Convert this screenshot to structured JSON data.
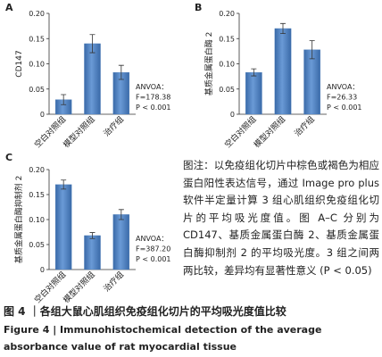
{
  "chart_data": [
    {
      "type": "bar",
      "panel": "A",
      "ylabel": "CD147",
      "categories": [
        "空白对照组",
        "模型对照组",
        "治疗组"
      ],
      "values": [
        0.029,
        0.14,
        0.083
      ],
      "errors": [
        0.01,
        0.018,
        0.014
      ],
      "color": "#4a7ebb",
      "ylim": [
        0,
        0.2
      ],
      "yticks": [
        0,
        0.05,
        {
          "value": 0.1,
          "label": "0.10"
        },
        0.15,
        {
          "value": 0.2,
          "label": "0.20"
        }
      ],
      "annotation": [
        "ANVOA：",
        "F=178.38",
        "P < 0.001"
      ]
    },
    {
      "type": "bar",
      "panel": "B",
      "ylabel": "基质金属蛋白酶 2",
      "categories": [
        "空白对照组",
        "模型对照组",
        "治疗组"
      ],
      "values": [
        0.083,
        0.17,
        0.128
      ],
      "errors": [
        0.007,
        0.01,
        0.018
      ],
      "color": "#4a7ebb",
      "ylim": [
        0,
        0.2
      ],
      "yticks": [
        0,
        0.05,
        {
          "value": 0.1,
          "label": "0.10"
        },
        0.15,
        {
          "value": 0.2,
          "label": "0.20"
        }
      ],
      "annotation": [
        "ANVOA：",
        "F=26.33",
        "P < 0.001"
      ]
    },
    {
      "type": "bar",
      "panel": "C",
      "ylabel": "基质金属蛋白酶抑制剂 2",
      "categories": [
        "空白对照组",
        "模型对照组",
        "治疗组"
      ],
      "values": [
        0.17,
        0.068,
        0.11
      ],
      "errors": [
        0.009,
        0.006,
        0.01
      ],
      "color": "#4a7ebb",
      "ylim": [
        0,
        0.2
      ],
      "yticks": [
        0,
        0.05,
        {
          "value": 0.1,
          "label": "0.10"
        },
        0.15,
        {
          "value": 0.2,
          "label": "0.20"
        }
      ],
      "annotation": [
        "ANVOA：",
        "F=387.20",
        "P < 0.001"
      ]
    }
  ],
  "note": "图注：以免疫组化切片中棕色或褐色为相应蛋白阳性表达信号，通过 Image pro plus 软件半定量计算 3 组心肌组织免疫组化切片的平均吸光度值。图 A–C 分别为 CD147、基质金属蛋白酶 2、基质金属蛋白酶抑制剂 2 的平均吸光度。3 组之间两两比较，差异均有显著性意义 (P < 0.05)",
  "caption": {
    "cn": "图 4 ｜各组大鼠心肌组织免疫组化切片的平均吸光度值比较",
    "en": "Figure 4 | Immunohistochemical detection of the average absorbance value of rat myocardial tissue"
  }
}
